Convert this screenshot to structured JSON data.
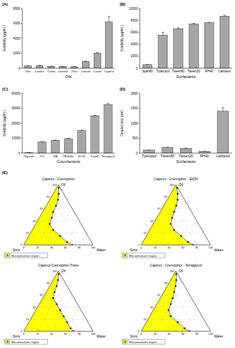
{
  "chart_data": [
    {
      "type": "bar",
      "title": "(A)",
      "x_label": "Oils",
      "y_label": "Solubility (µg/mL)",
      "categories": [
        "Oleic",
        "Linoleic",
        "Cotton",
        "Linseed",
        "Olive",
        "Labrafil",
        "Castor",
        "Capmul"
      ],
      "values": [
        300,
        350,
        250,
        250,
        200,
        900,
        2000,
        6200
      ],
      "errors": [
        30,
        40,
        20,
        20,
        20,
        50,
        80,
        700
      ],
      "color": "#a6a6a6",
      "ylim": [
        0,
        8000
      ],
      "yticks": [
        0,
        2000,
        4000,
        6000,
        8000
      ]
    },
    {
      "type": "bar",
      "title": "(B)",
      "x_label": "Surfactants",
      "y_label": "Solubility (µg/mL)",
      "categories": [
        "Span80",
        "Tylaxopol",
        "Tween80",
        "Tween20",
        "RH40",
        "Labrasol"
      ],
      "values": [
        600,
        5500,
        6600,
        7400,
        7600,
        8700
      ],
      "errors": [
        50,
        500,
        150,
        120,
        80,
        150
      ],
      "color": "#a6a6a6",
      "ylim": [
        0,
        10000
      ],
      "yticks": [
        0,
        2000,
        4000,
        6000,
        8000,
        10000
      ]
    },
    {
      "type": "bar",
      "title": "(C)",
      "x_label": "Cosurfactants",
      "y_label": "Solubility (µg/mL)",
      "categories": [
        "Glycerin",
        "PG",
        "IPA",
        "PEG400",
        "EtOH",
        "TransP",
        "Tetraglycol"
      ],
      "values": [
        400,
        7500,
        8500,
        9700,
        15000,
        25000,
        32500
      ],
      "errors": [
        50,
        150,
        200,
        300,
        400,
        250,
        700
      ],
      "color": "#a6a6a6",
      "ylim": [
        0,
        40000
      ],
      "yticks": [
        0,
        10000,
        20000,
        30000,
        40000
      ]
    },
    {
      "type": "bar",
      "title": "(D)",
      "x_label": "Surfactants",
      "y_label": "Droplet size (nm)",
      "categories": [
        "Tylaxopol",
        "Tween80",
        "Tween20",
        "RH40",
        "Labrasol"
      ],
      "values": [
        100,
        190,
        160,
        60,
        1400
      ],
      "errors": [
        5,
        10,
        8,
        5,
        120
      ],
      "color": "#a6a6a6",
      "ylim": [
        0,
        2000
      ],
      "yticks": [
        0,
        500,
        1000,
        1500,
        2000
      ]
    },
    {
      "type": "ternary",
      "annotation": "(E)",
      "title": "Capmul - Cremophor",
      "corners": {
        "top": "Oil",
        "left": "Smix",
        "right": "Water"
      },
      "ticks": [
        0,
        20,
        40,
        60,
        80,
        100
      ],
      "grid": true,
      "legend": "bottom-left",
      "series": [
        {
          "name": "Microemulsion region",
          "color": "#ffff00",
          "marker": "circle",
          "oil": [
            95,
            85,
            75,
            65,
            55,
            45,
            35,
            25,
            15,
            5,
            0
          ],
          "water": [
            3,
            8,
            12,
            14,
            15,
            18,
            20,
            30,
            45,
            60,
            70
          ]
        }
      ]
    },
    {
      "type": "ternary",
      "title": "Capmul - Cremophor - EtOH",
      "corners": {
        "top": "Oil",
        "left": "Smix",
        "right": "Water"
      },
      "ticks": [
        0,
        20,
        40,
        60,
        80,
        100
      ],
      "grid": true,
      "legend": "bottom-left",
      "series": [
        {
          "name": "Microemulsion region",
          "color": "#ffff00",
          "marker": "circle",
          "oil": [
            95,
            85,
            75,
            65,
            55,
            45,
            35,
            25,
            15,
            5,
            0
          ],
          "water": [
            4,
            10,
            15,
            18,
            20,
            22,
            25,
            35,
            50,
            65,
            75
          ]
        }
      ]
    },
    {
      "type": "ternary",
      "title": "Capmul-Cremophor-Trans",
      "corners": {
        "top": "Oil",
        "left": "Smix",
        "right": "Water"
      },
      "ticks": [
        0,
        20,
        40,
        60,
        80,
        100
      ],
      "grid": true,
      "legend": "bottom-left",
      "series": [
        {
          "name": "Microemulsion region",
          "color": "#ffff00",
          "marker": "circle",
          "oil": [
            95,
            85,
            75,
            65,
            55,
            45,
            35,
            25,
            15,
            5,
            0
          ],
          "water": [
            3,
            7,
            10,
            12,
            15,
            25,
            35,
            45,
            55,
            65,
            72
          ]
        }
      ]
    },
    {
      "type": "ternary",
      "title": "Capmul - Cremophor - Tetraglycol",
      "corners": {
        "top": "Oil",
        "left": "Smix",
        "right": "Water"
      },
      "ticks": [
        0,
        20,
        40,
        60,
        80,
        100
      ],
      "grid": true,
      "legend": "bottom-left",
      "series": [
        {
          "name": "Microemulsion region",
          "color": "#ffff00",
          "marker": "circle",
          "oil": [
            95,
            85,
            75,
            65,
            55,
            45,
            35,
            25,
            15,
            5,
            0
          ],
          "water": [
            3,
            8,
            12,
            15,
            18,
            20,
            22,
            30,
            45,
            60,
            70
          ]
        }
      ]
    }
  ]
}
